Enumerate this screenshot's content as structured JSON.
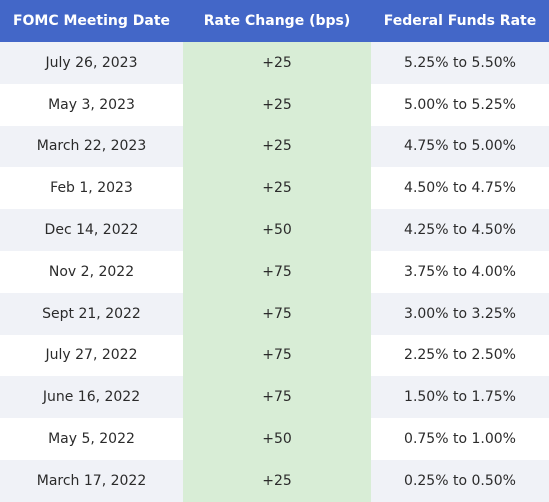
{
  "header": {
    "date": "FOMC Meeting Date",
    "change": "Rate Change (bps)",
    "range": "Federal Funds Rate"
  },
  "rows": [
    {
      "date": "July 26, 2023",
      "change": "+25",
      "range": "5.25% to 5.50%"
    },
    {
      "date": "May 3, 2023",
      "change": "+25",
      "range": "5.00% to 5.25%"
    },
    {
      "date": "March 22, 2023",
      "change": "+25",
      "range": "4.75% to 5.00%"
    },
    {
      "date": "Feb 1, 2023",
      "change": "+25",
      "range": "4.50% to 4.75%"
    },
    {
      "date": "Dec 14, 2022",
      "change": "+50",
      "range": "4.25% to 4.50%"
    },
    {
      "date": "Nov 2, 2022",
      "change": "+75",
      "range": "3.75% to 4.00%"
    },
    {
      "date": "Sept 21, 2022",
      "change": "+75",
      "range": "3.00% to 3.25%"
    },
    {
      "date": "July 27, 2022",
      "change": "+75",
      "range": "2.25% to 2.50%"
    },
    {
      "date": "June 16, 2022",
      "change": "+75",
      "range": "1.50% to 1.75%"
    },
    {
      "date": "May 5, 2022",
      "change": "+50",
      "range": "0.75% to 1.00%"
    },
    {
      "date": "March 17, 2022",
      "change": "+25",
      "range": "0.25% to 0.50%"
    }
  ],
  "colors": {
    "header_bg": "#4367c8",
    "header_text": "#ffffff",
    "stripe": "#f0f2f7",
    "change_col": "#d8edd6"
  }
}
